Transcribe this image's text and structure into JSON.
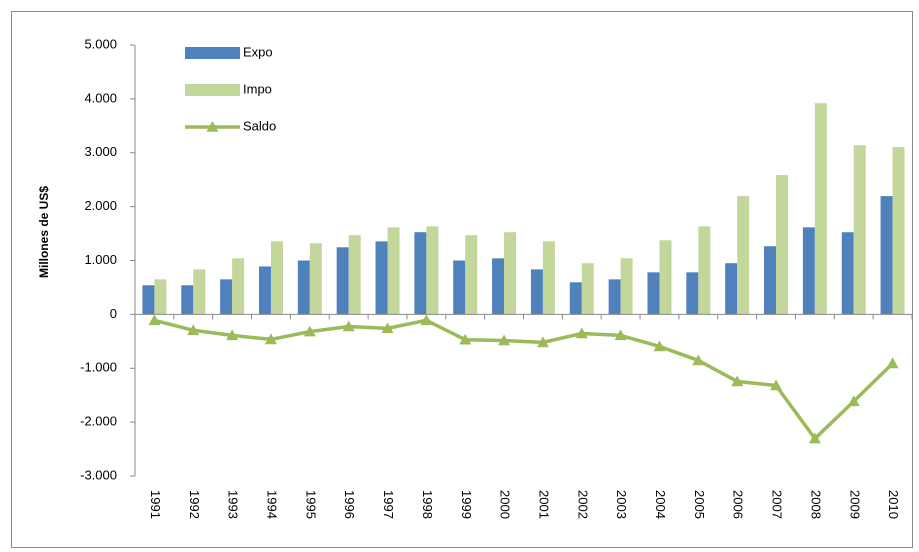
{
  "chart_data": {
    "type": "bar_line",
    "y_axis_label": "Millones de US$",
    "categories": [
      "1991",
      "1992",
      "1993",
      "1994",
      "1995",
      "1996",
      "1997",
      "1998",
      "1999",
      "2000",
      "2001",
      "2002",
      "2003",
      "2004",
      "2005",
      "2006",
      "2007",
      "2008",
      "2009",
      "2010"
    ],
    "series": [
      {
        "name": "Expo",
        "type": "bar",
        "color": "#4f81bd",
        "values": [
          540,
          540,
          650,
          890,
          1000,
          1245,
          1355,
          1525,
          1000,
          1040,
          835,
          595,
          650,
          780,
          780,
          950,
          1265,
          1615,
          1525,
          2195
        ]
      },
      {
        "name": "Impo",
        "type": "bar",
        "color": "#c3d69b",
        "values": [
          650,
          835,
          1040,
          1355,
          1320,
          1470,
          1615,
          1635,
          1470,
          1525,
          1355,
          950,
          1040,
          1375,
          1635,
          2195,
          2585,
          3920,
          3140,
          3105
        ]
      },
      {
        "name": "Saldo",
        "type": "line",
        "color": "#9bbb59",
        "values": [
          -110,
          -295,
          -390,
          -465,
          -320,
          -225,
          -260,
          -110,
          -470,
          -485,
          -520,
          -355,
          -390,
          -595,
          -855,
          -1245,
          -1320,
          -2305,
          -1615,
          -910
        ]
      }
    ],
    "ylim": [
      -3000,
      5000
    ],
    "yticks": [
      {
        "value": -3000,
        "label": "-3.000"
      },
      {
        "value": -2000,
        "label": "-2.000"
      },
      {
        "value": -1000,
        "label": "-1.000"
      },
      0,
      {
        "value": 1000,
        "label": "1.000"
      },
      {
        "value": 2000,
        "label": "2.000"
      },
      {
        "value": 3000,
        "label": "3.000"
      },
      {
        "value": 4000,
        "label": "4.000"
      },
      {
        "value": 5000,
        "label": "5.000"
      }
    ],
    "legend": "top-left",
    "grid": false
  }
}
